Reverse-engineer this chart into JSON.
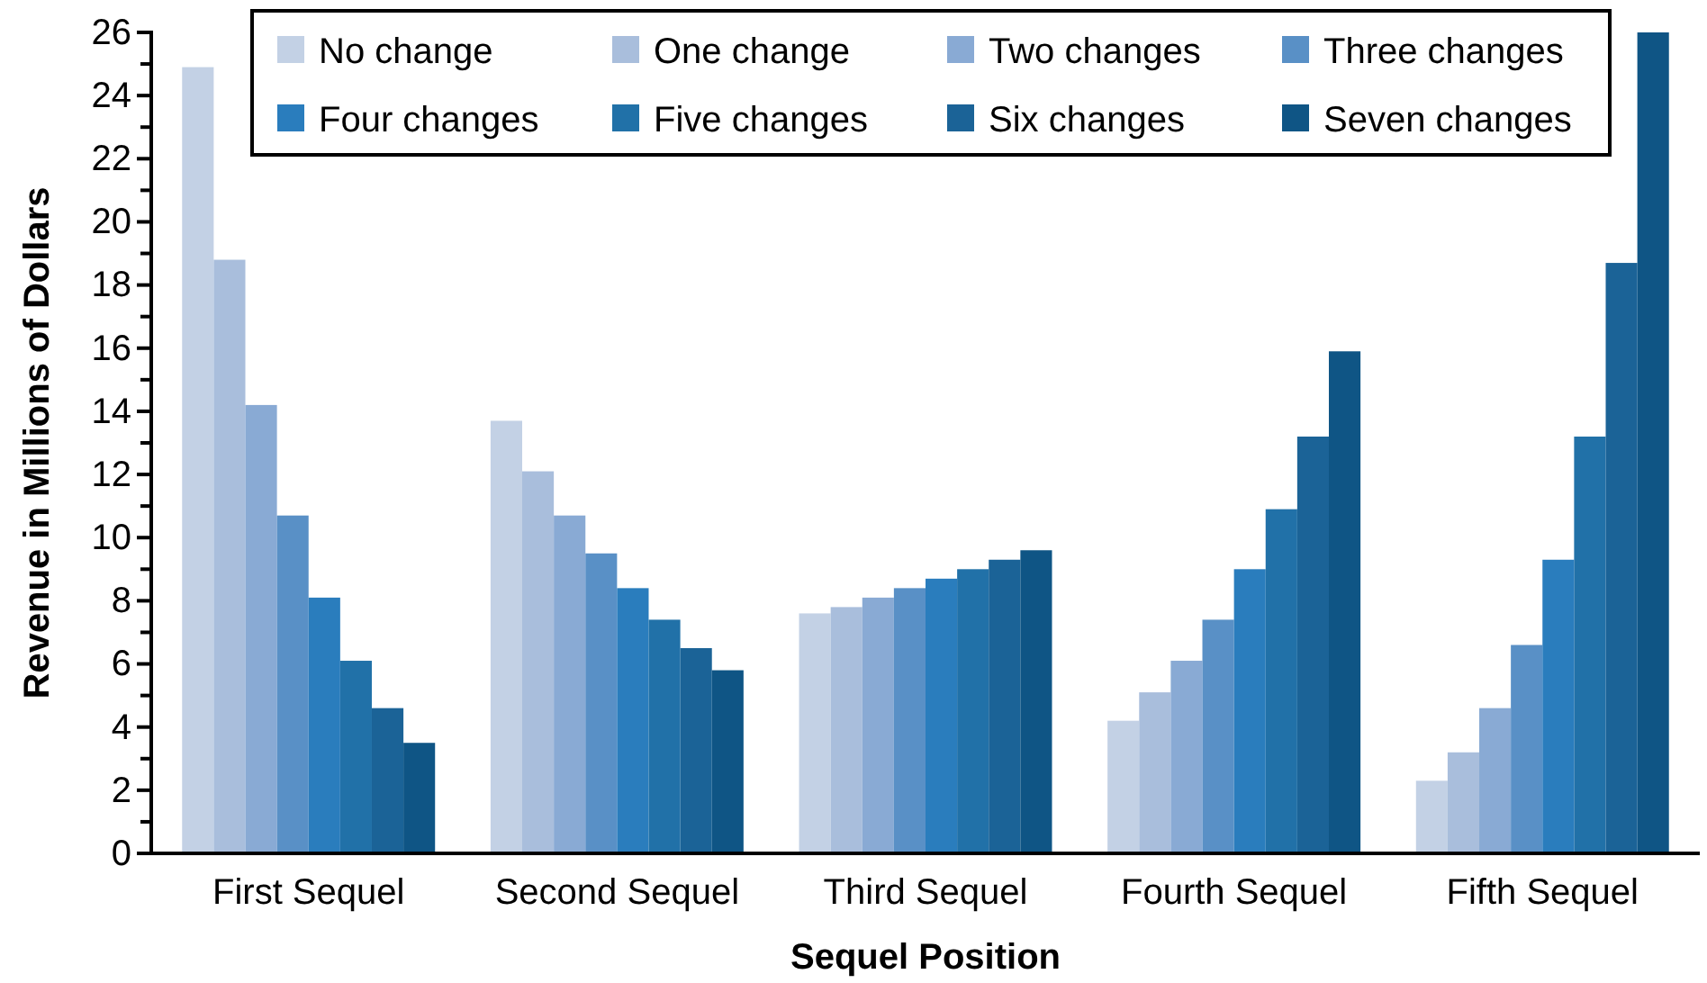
{
  "chart_data": {
    "type": "bar",
    "xlabel": "Sequel Position",
    "ylabel": "Revenue in Millions of Dollars",
    "categories": [
      "First Sequel",
      "Second Sequel",
      "Third Sequel",
      "Fourth Sequel",
      "Fifth Sequel"
    ],
    "series": [
      {
        "name": "No change",
        "color": "#c3d1e5",
        "values": [
          24.9,
          13.7,
          7.6,
          4.2,
          2.3
        ]
      },
      {
        "name": "One change",
        "color": "#a9bedc",
        "values": [
          18.8,
          12.1,
          7.8,
          5.1,
          3.2
        ]
      },
      {
        "name": "Two changes",
        "color": "#89aad4",
        "values": [
          14.2,
          10.7,
          8.1,
          6.1,
          4.6
        ]
      },
      {
        "name": "Three changes",
        "color": "#5990c6",
        "values": [
          10.7,
          9.5,
          8.4,
          7.4,
          6.6
        ]
      },
      {
        "name": "Four changes",
        "color": "#2a7dbd",
        "values": [
          8.1,
          8.4,
          8.7,
          9.0,
          9.3
        ]
      },
      {
        "name": "Five changes",
        "color": "#2171a8",
        "values": [
          6.1,
          7.4,
          9.0,
          10.9,
          13.2
        ]
      },
      {
        "name": "Six changes",
        "color": "#1b6397",
        "values": [
          4.6,
          6.5,
          9.3,
          13.2,
          18.7
        ]
      },
      {
        "name": "Seven changes",
        "color": "#0f5585",
        "values": [
          3.5,
          5.8,
          9.6,
          15.9,
          26.0
        ]
      }
    ],
    "ylim": [
      0,
      26
    ],
    "yticks": [
      0,
      2,
      4,
      6,
      8,
      10,
      12,
      14,
      16,
      18,
      20,
      22,
      24,
      26
    ],
    "grid": false,
    "legend": "top"
  }
}
